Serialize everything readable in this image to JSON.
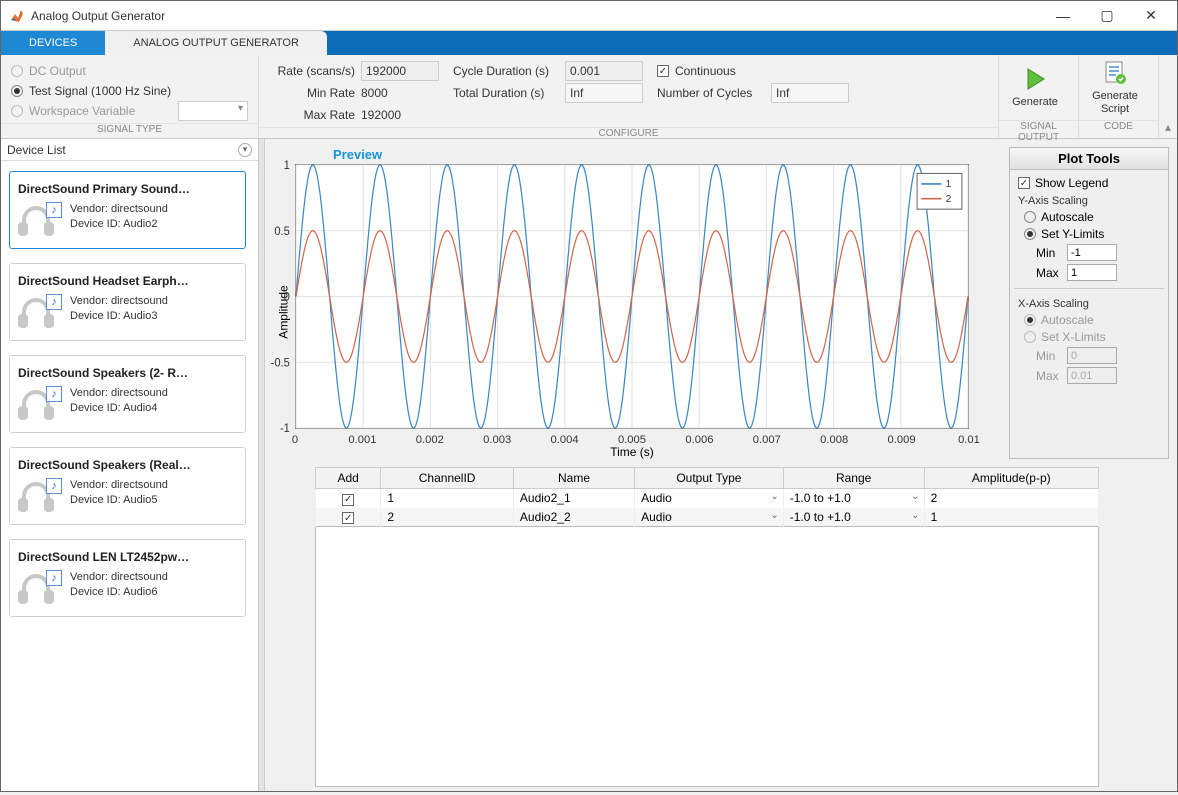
{
  "window": {
    "title": "Analog Output Generator"
  },
  "tabs": {
    "devices": "DEVICES",
    "aog": "ANALOG OUTPUT GENERATOR"
  },
  "toolstrip": {
    "signal_type": {
      "label": "SIGNAL TYPE",
      "dc": "DC Output",
      "test": "Test Signal (1000 Hz Sine)",
      "ws": "Workspace Variable"
    },
    "configure": {
      "label": "CONFIGURE",
      "rate_lbl": "Rate (scans/s)",
      "rate_val": "192000",
      "minrate_lbl": "Min Rate",
      "minrate_val": "8000",
      "maxrate_lbl": "Max Rate",
      "maxrate_val": "192000",
      "cycdur_lbl": "Cycle Duration (s)",
      "cycdur_val": "0.001",
      "totdur_lbl": "Total Duration (s)",
      "totdur_val": "Inf",
      "cont_lbl": "Continuous",
      "ncyc_lbl": "Number of Cycles",
      "ncyc_val": "Inf"
    },
    "signal_output": {
      "label": "SIGNAL OUTPUT",
      "generate": "Generate"
    },
    "code": {
      "label": "CODE",
      "genscript": "Generate\nScript"
    }
  },
  "device_list": {
    "header": "Device List",
    "items": [
      {
        "title": "DirectSound Primary Sound…",
        "vendor": "Vendor: directsound",
        "id": "Device ID: Audio2",
        "selected": true
      },
      {
        "title": "DirectSound Headset Earph…",
        "vendor": "Vendor: directsound",
        "id": "Device ID: Audio3",
        "selected": false
      },
      {
        "title": "DirectSound Speakers (2- R…",
        "vendor": "Vendor: directsound",
        "id": "Device ID: Audio4",
        "selected": false
      },
      {
        "title": "DirectSound Speakers (Real…",
        "vendor": "Vendor: directsound",
        "id": "Device ID: Audio5",
        "selected": false
      },
      {
        "title": "DirectSound LEN LT2452pw…",
        "vendor": "Vendor: directsound",
        "id": "Device ID: Audio6",
        "selected": false
      }
    ]
  },
  "preview": {
    "title": "Preview",
    "ylabel": "Amplitude",
    "xlabel": "Time (s)",
    "ylim": [
      -1,
      1
    ],
    "yticks": [
      -1,
      -0.5,
      0,
      0.5,
      1
    ],
    "xlim": [
      0,
      0.01
    ],
    "xticks": [
      0,
      0.001,
      0.002,
      0.003,
      0.004,
      0.005,
      0.006,
      0.007,
      0.008,
      0.009,
      0.01
    ],
    "series": [
      {
        "name": "1",
        "color": "#3a86c8",
        "amplitude": 1.0,
        "freq_hz": 1000
      },
      {
        "name": "2",
        "color": "#d1674a",
        "amplitude": 0.5,
        "freq_hz": 1000
      }
    ],
    "legend_labels": [
      "1",
      "2"
    ],
    "grid_color": "#e2e2e2",
    "axis_color": "#333333",
    "bg_color": "#ffffff"
  },
  "plot_tools": {
    "title": "Plot Tools",
    "show_legend": "Show Legend",
    "y_scaling": "Y-Axis Scaling",
    "autoscale": "Autoscale",
    "set_ylim": "Set Y-Limits",
    "x_scaling": "X-Axis Scaling",
    "set_xlim": "Set X-Limits",
    "min": "Min",
    "max": "Max",
    "ymin": "-1",
    "ymax": "1",
    "xmin": "0",
    "xmax": "0.01"
  },
  "channels": {
    "headers": [
      "Add",
      "ChannelID",
      "Name",
      "Output Type",
      "Range",
      "Amplitude(p-p)"
    ],
    "rows": [
      {
        "add": true,
        "id": "1",
        "name": "Audio2_1",
        "type": "Audio",
        "range": "-1.0 to +1.0",
        "amp": "2"
      },
      {
        "add": true,
        "id": "2",
        "name": "Audio2_2",
        "type": "Audio",
        "range": "-1.0 to +1.0",
        "amp": "1"
      }
    ]
  }
}
